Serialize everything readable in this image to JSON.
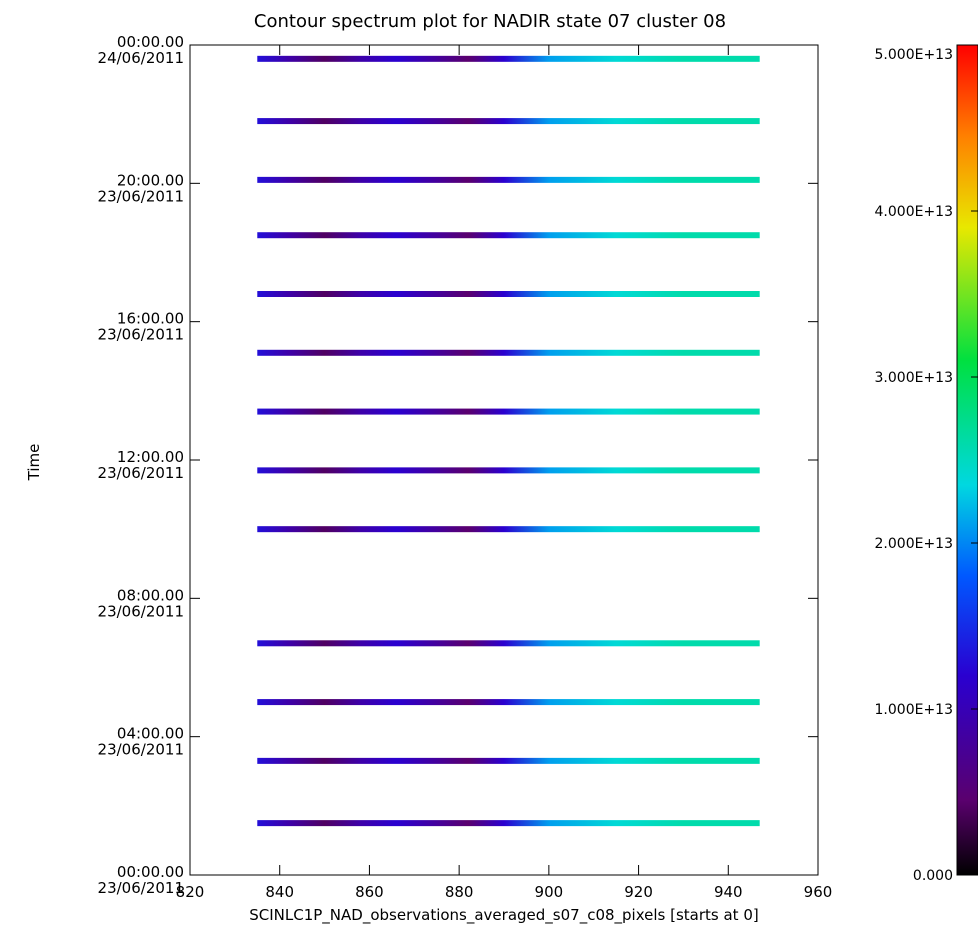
{
  "chart_data": {
    "type": "heatmap",
    "title": "Contour spectrum plot for NADIR state 07 cluster 08",
    "xlabel": "SCINLC1P_NAD_observations_averaged_s07_c08_pixels [starts at 0]",
    "ylabel": "Time",
    "xlim": [
      820,
      960
    ],
    "x_ticks": [
      "820",
      "840",
      "860",
      "880",
      "900",
      "920",
      "940",
      "960"
    ],
    "ylim": [
      "00:00.00 23/06/2011",
      "00:00.00 24/06/2011"
    ],
    "y_ticks": [
      {
        "time": "00:00.00",
        "date": "23/06/2011",
        "hour": 0
      },
      {
        "time": "04:00.00",
        "date": "23/06/2011",
        "hour": 4
      },
      {
        "time": "08:00.00",
        "date": "23/06/2011",
        "hour": 8
      },
      {
        "time": "12:00.00",
        "date": "23/06/2011",
        "hour": 12
      },
      {
        "time": "16:00.00",
        "date": "23/06/2011",
        "hour": 16
      },
      {
        "time": "20:00.00",
        "date": "23/06/2011",
        "hour": 20
      },
      {
        "time": "00:00.00",
        "date": "24/06/2011",
        "hour": 24
      }
    ],
    "pixel_range": [
      835,
      947
    ],
    "observation_hours": [
      1.5,
      3.3,
      5.0,
      6.7,
      10.0,
      11.7,
      13.4,
      15.1,
      16.8,
      18.5,
      20.1,
      21.8,
      23.6
    ],
    "intensity_profile": [
      {
        "pixel": 835,
        "v": 13000000000000.0
      },
      {
        "pixel": 842,
        "v": 9000000000000.0
      },
      {
        "pixel": 850,
        "v": 4000000000000.0
      },
      {
        "pixel": 858,
        "v": 9000000000000.0
      },
      {
        "pixel": 866,
        "v": 12000000000000.0
      },
      {
        "pixel": 875,
        "v": 8000000000000.0
      },
      {
        "pixel": 882,
        "v": 4500000000000.0
      },
      {
        "pixel": 890,
        "v": 12000000000000.0
      },
      {
        "pixel": 900,
        "v": 21000000000000.0
      },
      {
        "pixel": 915,
        "v": 24000000000000.0
      },
      {
        "pixel": 930,
        "v": 26000000000000.0
      },
      {
        "pixel": 947,
        "v": 26000000000000.0
      }
    ],
    "colorbar": {
      "min": 0,
      "max": 50000000000000.0,
      "ticks": [
        {
          "value": 0,
          "label": "0.000"
        },
        {
          "value": 10000000000000.0,
          "label": "1.000E+13"
        },
        {
          "value": 20000000000000.0,
          "label": "2.000E+13"
        },
        {
          "value": 30000000000000.0,
          "label": "3.000E+13"
        },
        {
          "value": 40000000000000.0,
          "label": "4.000E+13"
        },
        {
          "value": 50000000000000.0,
          "label": "5.000E+13"
        }
      ],
      "colors": [
        "#000000",
        "#5a006e",
        "#2a00d0",
        "#0058ff",
        "#00d8e0",
        "#00e040",
        "#e8e800",
        "#ff8000",
        "#ff0000"
      ]
    }
  }
}
